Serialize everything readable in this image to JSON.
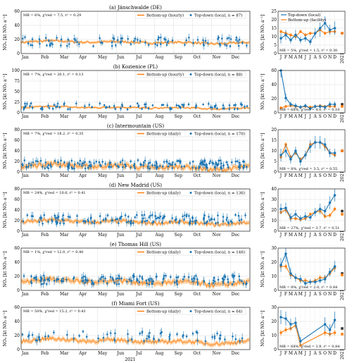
{
  "figure": {
    "xlabel": "2021",
    "colors": {
      "top_down": "#1f77b4",
      "bottom_up": "#ff7f0e",
      "band": "#ffbb78",
      "annual_marker": "#333333"
    }
  },
  "months_daily": [
    "Jan",
    "Feb",
    "Mar",
    "Apr",
    "May",
    "Jun",
    "Jul",
    "Aug",
    "Sep",
    "Oct",
    "Nov",
    "Dec"
  ],
  "months_letters": [
    "J",
    "F",
    "M",
    "A",
    "M",
    "J",
    "J",
    "A",
    "S",
    "O",
    "N",
    "D"
  ],
  "annual_label": "2021",
  "chart_data": [
    {
      "panel": "a",
      "type": "line",
      "title": "(a) Jänschwalde (DE)",
      "ylabel": "NOₓ [kt NO₂ a⁻¹]",
      "ylim": [
        0,
        60
      ],
      "yticks": [
        0,
        20,
        40,
        60
      ],
      "stats": "MB = 6%, χ²red = 7.5, r² = 0.29",
      "legend": [
        "Bottom-up (hourly)",
        "Top-down (local, n = 87)"
      ],
      "series": [
        {
          "name": "Bottom-up (hourly)",
          "baseline": 16,
          "amplitude": 3
        },
        {
          "name": "Top-down (local, n = 87)",
          "n": 87,
          "mean": 15,
          "spread": 8
        }
      ]
    },
    {
      "panel": "b",
      "type": "line",
      "title": "(b) Kozienice (PL)",
      "ylabel": "NOₓ [kt NO₂ a⁻¹]",
      "ylim": [
        0,
        100
      ],
      "yticks": [
        0,
        25,
        50,
        75,
        100
      ],
      "stats": "MB = 7%, χ²red = 20.1, r² = 0.13",
      "legend": [
        "Bottom-up (hourly)",
        "Top-down (local, n = 88)"
      ],
      "series": [
        {
          "name": "Bottom-up (hourly)",
          "baseline": 12,
          "amplitude": 4
        },
        {
          "name": "Top-down (local, n = 88)",
          "n": 88,
          "mean": 13,
          "spread": 9
        }
      ]
    },
    {
      "panel": "c",
      "type": "line",
      "title": "(c) Intermountain (US)",
      "ylabel": "NOₓ [kt NO₂ a⁻¹]",
      "ylim": [
        0,
        80
      ],
      "yticks": [
        0,
        20,
        40,
        60,
        80
      ],
      "stats": "MB = 7%, χ²red = 18.2, r² = 0.35",
      "legend": [
        "Bottom-up (daily)",
        "Top-down (local, n = 170)"
      ],
      "series": [
        {
          "name": "Bottom-up (daily)",
          "baseline": 10,
          "amplitude": 8
        },
        {
          "name": "Top-down (local, n = 170)",
          "n": 170,
          "mean": 12,
          "spread": 10
        }
      ]
    },
    {
      "panel": "d",
      "type": "line",
      "title": "(d) New Madrid (US)",
      "ylabel": "NOₓ [kt NO₂ a⁻¹]",
      "ylim": [
        0,
        80
      ],
      "yticks": [
        0,
        20,
        40,
        60,
        80
      ],
      "stats": "MB = 24%, χ²red = 10.6, r² = 0.41",
      "legend": [
        "Bottom-up (daily)",
        "Top-down (local, n = 136)"
      ],
      "series": [
        {
          "name": "Bottom-up (daily)",
          "baseline": 17,
          "amplitude": 6
        },
        {
          "name": "Top-down (local, n = 136)",
          "n": 136,
          "mean": 20,
          "spread": 11
        }
      ]
    },
    {
      "panel": "e",
      "type": "line",
      "title": "(e) Thomas Hill (US)",
      "ylabel": "NOₓ [kt NO₂ a⁻¹]",
      "ylim": [
        0,
        60
      ],
      "yticks": [
        0,
        20,
        40,
        60
      ],
      "stats": "MB = 1%, χ²red = 12.0, r² = 0.40",
      "legend": [
        "Bottom-up (daily)",
        "Top-down (local, n = 146)"
      ],
      "series": [
        {
          "name": "Bottom-up (daily)",
          "baseline": 12,
          "amplitude": 6
        },
        {
          "name": "Top-down (local, n = 146)",
          "n": 146,
          "mean": 13,
          "spread": 8
        }
      ]
    },
    {
      "panel": "f",
      "type": "line",
      "title": "(f) Miami Fort (US)",
      "ylabel": "NOₓ [kt NO₂ a⁻¹]",
      "ylim": [
        0,
        60
      ],
      "yticks": [
        0,
        20,
        40,
        60
      ],
      "stats": "MB = 50%, χ²red = 15.2, r² = 0.43",
      "legend": [
        "Bottom-up (daily)",
        "Top-down (local, n = 64)"
      ],
      "series": [
        {
          "name": "Bottom-up (daily)",
          "baseline": 12,
          "amplitude": 5
        },
        {
          "name": "Top-down (local, n = 64)",
          "n": 64,
          "mean": 17,
          "spread": 9
        }
      ]
    }
  ],
  "monthly_data": [
    {
      "panel": "a",
      "type": "line",
      "ylim": [
        0,
        25
      ],
      "yticks": [
        0,
        5,
        10,
        15,
        20,
        25
      ],
      "stats": "MB = 5%, χ²red = 1.5, r² = 0.30",
      "legend": [
        "Top-down (local)",
        "Bottom-up (facility)"
      ],
      "series": [
        {
          "name": "Top-down (local)",
          "values": [
            9,
            11,
            8,
            11,
            8,
            9,
            7,
            12,
            15,
            18,
            14,
            15
          ],
          "errors": [
            3,
            3,
            2,
            3,
            2,
            2,
            2,
            3,
            5,
            4,
            3,
            4
          ]
        },
        {
          "name": "Bottom-up (facility)",
          "values": [
            13,
            12,
            11,
            10,
            13,
            11,
            12,
            12,
            14,
            12,
            13,
            13
          ],
          "errors": [
            1,
            1,
            1,
            1,
            1,
            1,
            1,
            1,
            1,
            1,
            1,
            1
          ]
        }
      ],
      "annual": {
        "top_down": 12,
        "bottom_up": 12
      }
    },
    {
      "panel": "b",
      "type": "line",
      "ylim": [
        0,
        60
      ],
      "yticks": [
        0,
        20,
        40,
        60
      ],
      "stats": "MB = 68%, χ²red = 4.0, r² = 0.10",
      "legend": [],
      "series": [
        {
          "name": "Top-down (local)",
          "values": [
            60,
            21,
            12,
            10,
            8,
            10,
            6,
            9,
            9,
            8,
            12,
            12
          ],
          "errors": [
            10,
            6,
            4,
            4,
            3,
            3,
            2,
            3,
            3,
            3,
            4,
            4
          ]
        },
        {
          "name": "Bottom-up (facility)",
          "values": [
            7,
            9,
            10,
            9,
            8,
            9,
            8,
            9,
            10,
            9,
            9,
            9
          ],
          "errors": [
            2,
            2,
            2,
            2,
            2,
            2,
            2,
            2,
            2,
            2,
            2,
            2
          ]
        }
      ],
      "annual": {
        "top_down": 12,
        "bottom_up": 9
      }
    },
    {
      "panel": "c",
      "type": "line",
      "ylim": [
        0,
        20
      ],
      "yticks": [
        0,
        5,
        10,
        15,
        20
      ],
      "stats": "MB = 8%, χ²red = 3.5, r² = 0.55",
      "legend": [],
      "series": [
        {
          "name": "Top-down (local)",
          "values": [
            8,
            10,
            6,
            10,
            5,
            8,
            12,
            14,
            14,
            13,
            9,
            9
          ],
          "errors": [
            3,
            3,
            2,
            2,
            2,
            2,
            3,
            3,
            3,
            3,
            2,
            2
          ]
        },
        {
          "name": "Bottom-up (facility)",
          "values": [
            7,
            13,
            7,
            9,
            6,
            8,
            13,
            14,
            14,
            12,
            9,
            8
          ],
          "errors": [
            1,
            1,
            1,
            1,
            1,
            1,
            1,
            1,
            1,
            1,
            1,
            1
          ]
        }
      ],
      "annual": {
        "top_down": 10,
        "bottom_up": 10
      }
    },
    {
      "panel": "d",
      "type": "line",
      "ylim": [
        0,
        40
      ],
      "yticks": [
        0,
        10,
        20,
        30,
        40
      ],
      "stats": "MB = 27%, χ²red = 3.7, r² = 0.51",
      "legend": [],
      "series": [
        {
          "name": "Top-down (local)",
          "values": [
            21,
            22,
            13,
            16,
            12,
            14,
            13,
            18,
            21,
            19,
            27,
            34
          ],
          "errors": [
            5,
            5,
            4,
            4,
            3,
            4,
            3,
            4,
            5,
            5,
            6,
            6
          ]
        },
        {
          "name": "Bottom-up (facility)",
          "values": [
            18,
            20,
            12,
            12,
            11,
            12,
            16,
            18,
            19,
            14,
            15,
            21
          ],
          "errors": [
            2,
            2,
            2,
            2,
            2,
            2,
            2,
            2,
            2,
            2,
            2,
            2
          ]
        }
      ],
      "annual": {
        "top_down": 19,
        "bottom_up": 16
      }
    },
    {
      "panel": "e",
      "type": "line",
      "ylim": [
        0,
        30
      ],
      "yticks": [
        0,
        10,
        20,
        30
      ],
      "stats": "MB = 8%, χ²red = 2.0, r² = 0.84",
      "legend": [],
      "series": [
        {
          "name": "Top-down (local)",
          "values": [
            18,
            26,
            12,
            9,
            8,
            5,
            6,
            6,
            7,
            8,
            13,
            17
          ],
          "errors": [
            5,
            6,
            4,
            3,
            3,
            2,
            2,
            2,
            2,
            3,
            3,
            4
          ]
        },
        {
          "name": "Bottom-up (facility)",
          "values": [
            17,
            17,
            11,
            9,
            7,
            7,
            6,
            7,
            9,
            9,
            12,
            16
          ],
          "errors": [
            2,
            2,
            2,
            2,
            2,
            2,
            2,
            2,
            2,
            2,
            2,
            2
          ]
        }
      ],
      "annual": {
        "top_down": 12,
        "bottom_up": 11
      }
    },
    {
      "panel": "f",
      "type": "line",
      "ylim": [
        0,
        30
      ],
      "yticks": [
        0,
        10,
        20,
        30
      ],
      "stats": "MB = 68%, χ²red = 3.9, r² = 0.84",
      "legend": [],
      "series": [
        {
          "name": "Top-down (local)",
          "values": [
            23,
            22,
            18,
            19,
            6,
            0,
            0,
            0,
            0,
            18,
            14,
            21
          ],
          "errors": [
            5,
            5,
            4,
            4,
            3,
            0,
            0,
            0,
            0,
            5,
            4,
            6
          ]
        },
        {
          "name": "Bottom-up (facility)",
          "values": [
            12,
            14,
            15,
            17,
            3,
            0,
            0,
            0,
            0,
            12,
            11,
            12
          ],
          "errors": [
            2,
            2,
            2,
            2,
            1,
            0,
            0,
            0,
            0,
            2,
            2,
            2
          ]
        }
      ],
      "annual": {
        "top_down": 15,
        "bottom_up": 11
      }
    }
  ]
}
